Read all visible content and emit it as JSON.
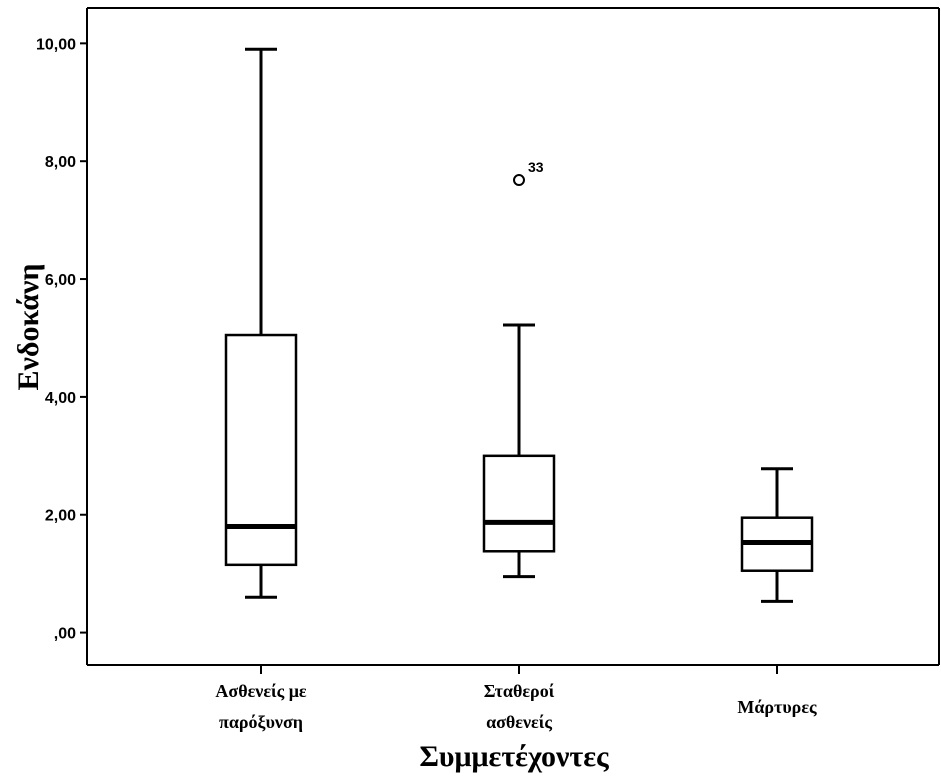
{
  "chart_data": {
    "type": "boxplot",
    "xlabel": "Συμμετέχοντες",
    "ylabel": "Ενδοκάνη",
    "ylim": [
      -0.55,
      10.6
    ],
    "yticks": [
      0,
      2,
      4,
      6,
      8,
      10
    ],
    "ytick_labels": [
      ",00",
      "2,00",
      "4,00",
      "6,00",
      "8,00",
      "10,00"
    ],
    "grid": false,
    "categories": [
      {
        "name": "Ασθενείς με",
        "name2": "παρόξυνση",
        "min": 0.6,
        "q1": 1.15,
        "median": 1.8,
        "q3": 5.05,
        "max": 9.9,
        "outliers": []
      },
      {
        "name": "Σταθεροί",
        "name2": "ασθενείς",
        "min": 0.95,
        "q1": 1.38,
        "median": 1.87,
        "q3": 3.0,
        "max": 5.22,
        "outliers": [
          {
            "value": 7.68,
            "label": "33"
          }
        ]
      },
      {
        "name": "Μάρτυρες",
        "name2": "",
        "min": 0.53,
        "q1": 1.05,
        "median": 1.53,
        "q3": 1.95,
        "max": 2.78,
        "outliers": []
      }
    ]
  }
}
